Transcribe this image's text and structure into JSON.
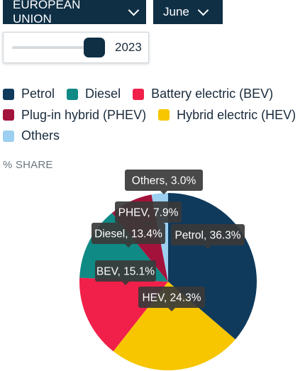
{
  "filters": {
    "region": "EUROPEAN UNION",
    "month": "June",
    "year": "2023"
  },
  "legend": [
    {
      "label": "Petrol",
      "color": "#0f3a5c"
    },
    {
      "label": "Diesel",
      "color": "#0f8a85"
    },
    {
      "label": "Battery electric (BEV)",
      "color": "#f0204a"
    },
    {
      "label": "Plug-in hybrid (PHEV)",
      "color": "#a3123a"
    },
    {
      "label": "Hybrid electric (HEV)",
      "color": "#f7c600"
    },
    {
      "label": "Others",
      "color": "#9ccff0"
    }
  ],
  "unit_label": "% SHARE",
  "chart_data": {
    "type": "pie",
    "title": "",
    "categories": [
      "Petrol",
      "HEV",
      "BEV",
      "Diesel",
      "PHEV",
      "Others"
    ],
    "values": [
      36.3,
      24.3,
      15.1,
      13.4,
      7.9,
      3.0
    ],
    "colors": [
      "#0f3a5c",
      "#f7c600",
      "#f0204a",
      "#0f8a85",
      "#a3123a",
      "#9ccff0"
    ],
    "labels": [
      "Petrol, 36.3%",
      "HEV, 24.3%",
      "BEV, 15.1%",
      "Diesel, 13.4%",
      "PHEV, 7.9%",
      "Others, 3.0%"
    ],
    "unit": "%",
    "legend_placement": "top"
  }
}
